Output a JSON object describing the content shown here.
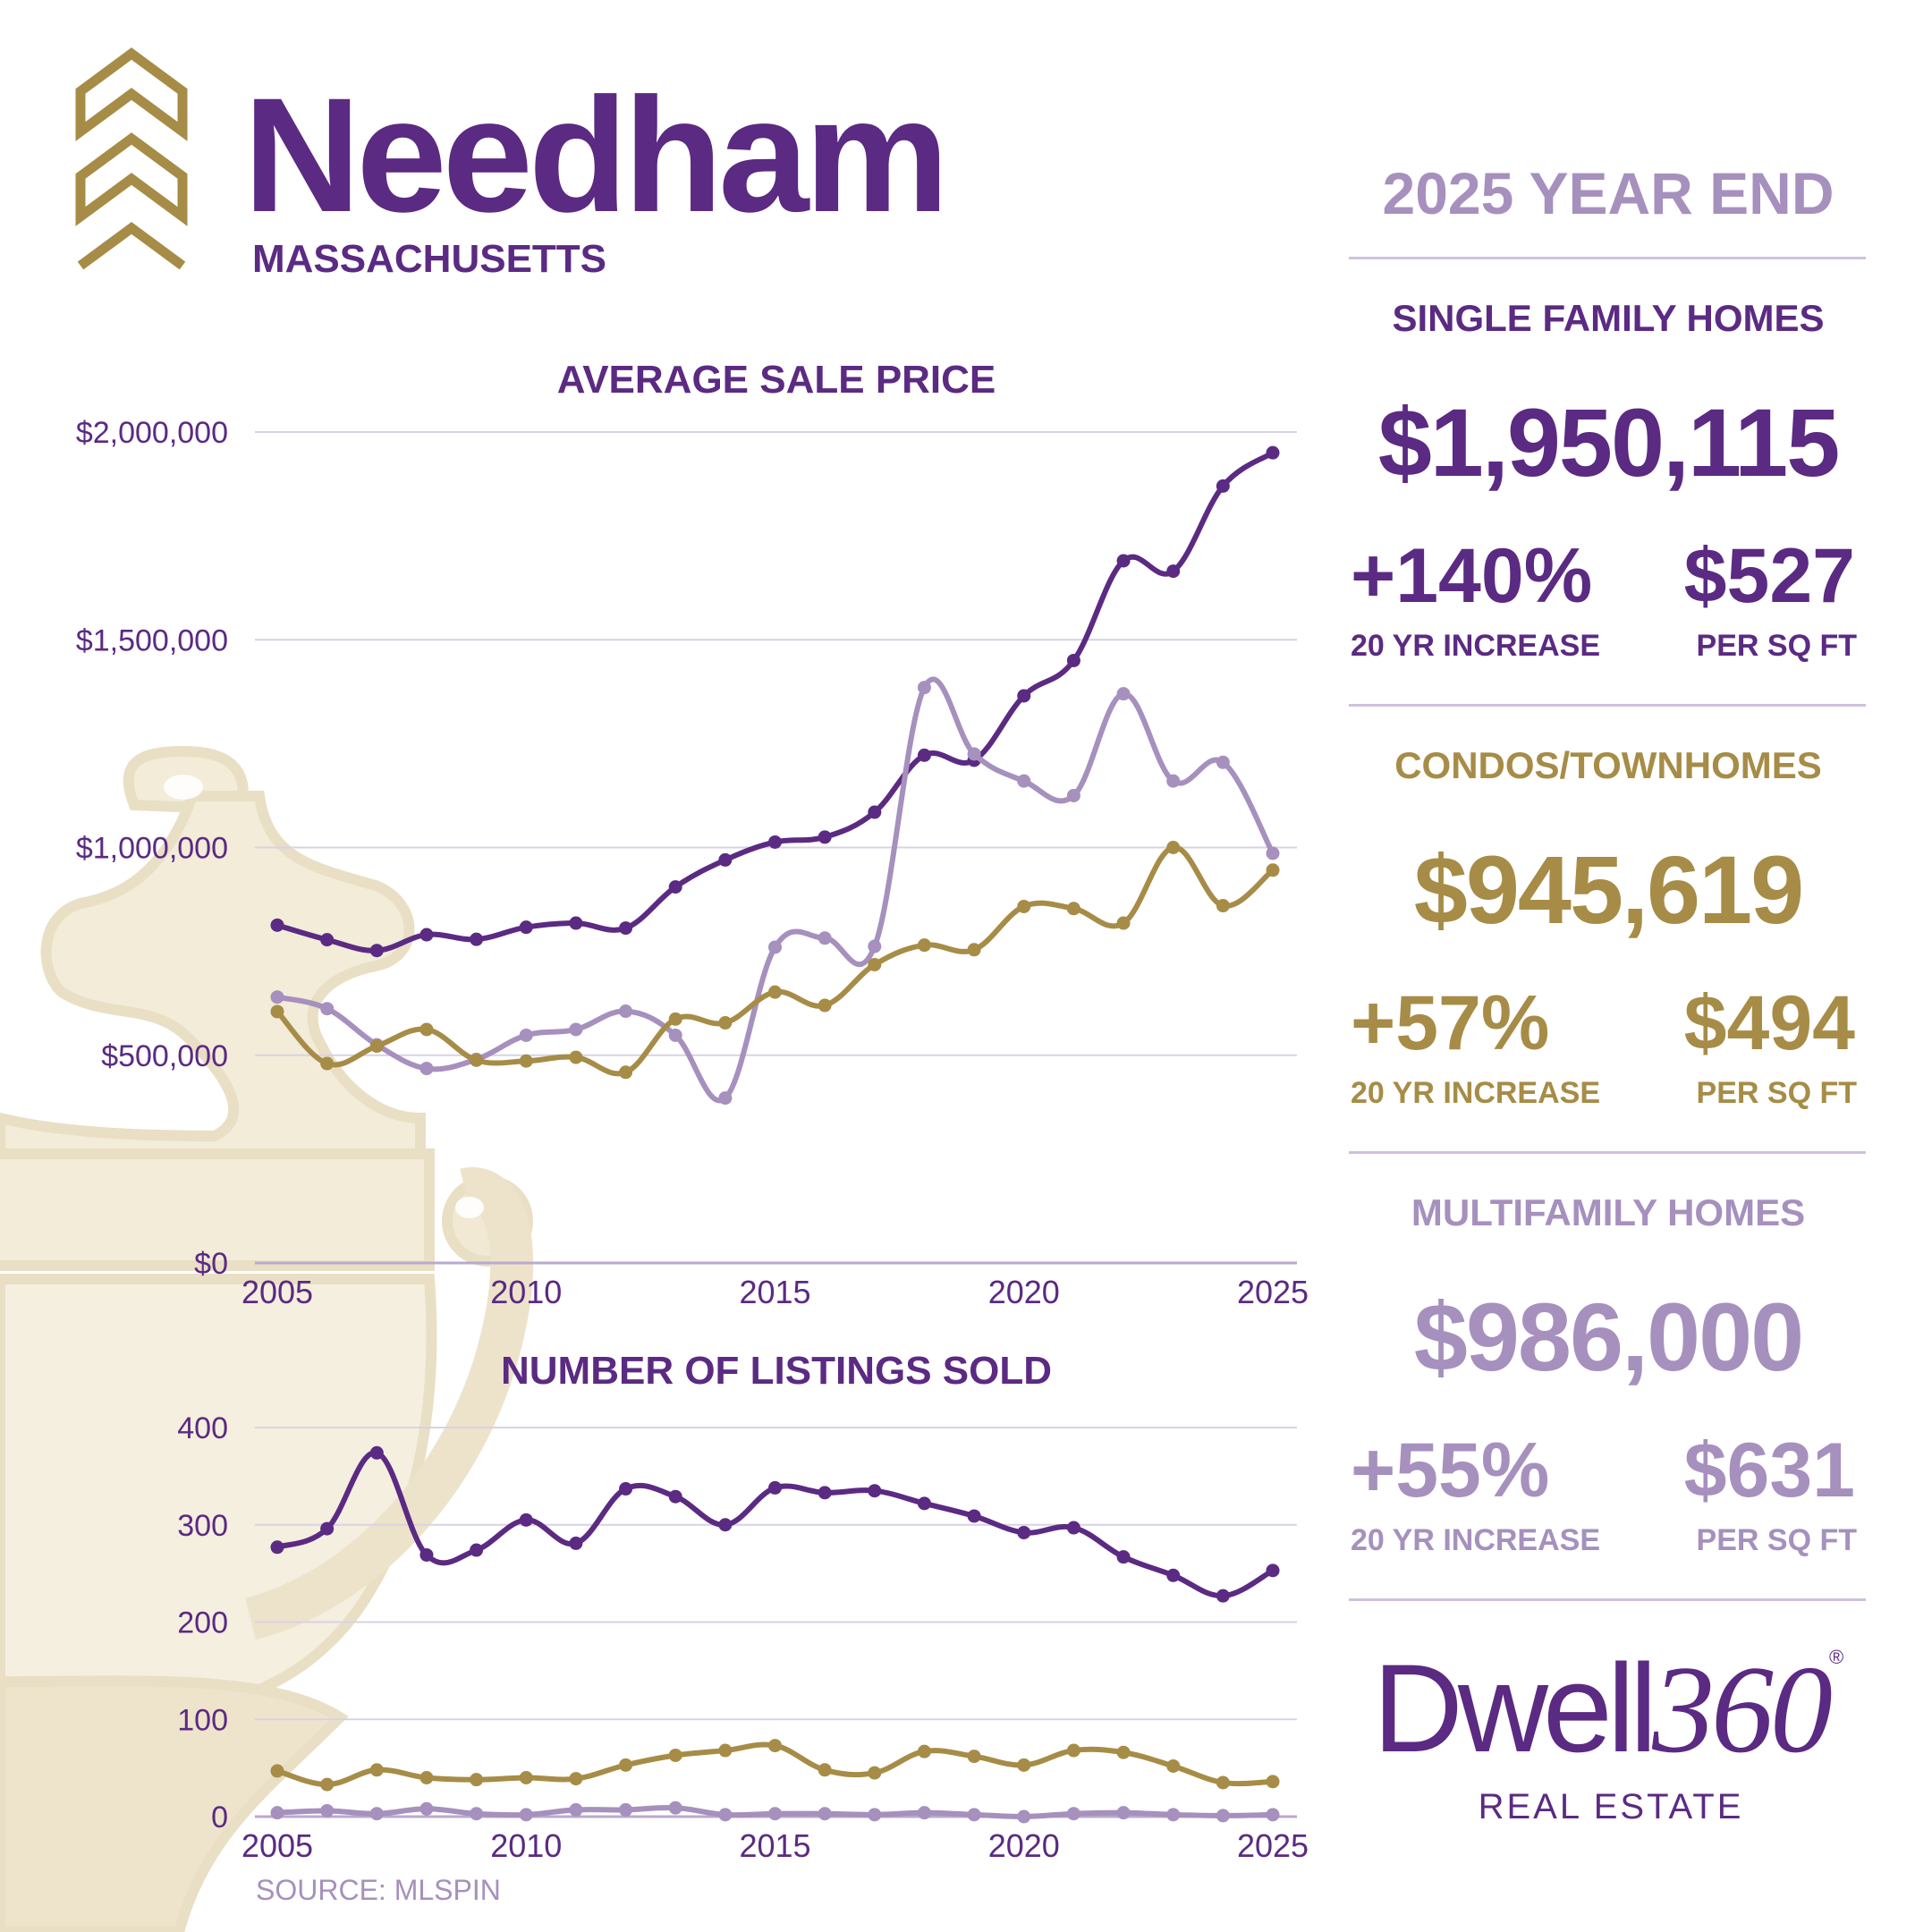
{
  "header": {
    "town": "Needham",
    "state": "MASSACHUSETTS",
    "period": "2025 YEAR END"
  },
  "colors": {
    "purple": "#5b2a82",
    "gold": "#a68c46",
    "lavender": "#a690bd",
    "grid": "#d9d2e3"
  },
  "segments": {
    "single_family": {
      "label": "SINGLE FAMILY HOMES",
      "price": "$1,950,115",
      "increase": "+140%",
      "increase_label": "20 YR INCREASE",
      "ppsf": "$527",
      "ppsf_label": "PER SQ FT"
    },
    "condos": {
      "label": "CONDOS/TOWNHOMES",
      "price": "$945,619",
      "increase": "+57%",
      "increase_label": "20 YR INCREASE",
      "ppsf": "$494",
      "ppsf_label": "PER SQ FT"
    },
    "multifamily": {
      "label": "MULTIFAMILY HOMES",
      "price": "$986,000",
      "increase": "+55%",
      "increase_label": "20 YR INCREASE",
      "ppsf": "$631",
      "ppsf_label": "PER SQ FT"
    }
  },
  "brand": {
    "name_part1": "Dwell",
    "name_part2": "360",
    "registered": "®",
    "tagline": "REAL ESTATE"
  },
  "source": "SOURCE: MLSPIN",
  "chart_data": [
    {
      "type": "line",
      "title": "AVERAGE SALE PRICE",
      "x": [
        2005,
        2006,
        2007,
        2008,
        2009,
        2010,
        2011,
        2012,
        2013,
        2014,
        2015,
        2016,
        2017,
        2018,
        2019,
        2020,
        2021,
        2022,
        2023,
        2024,
        2025
      ],
      "x_ticks": [
        "2005",
        "2010",
        "2015",
        "2020",
        "2025"
      ],
      "y_ticks": [
        "$0",
        "$500,000",
        "$1,000,000",
        "$1,500,000",
        "$2,000,000"
      ],
      "ylim": [
        0,
        2000000
      ],
      "grid": true,
      "series": [
        {
          "key": "single_family",
          "color": "#5b2a82",
          "values": [
            813000,
            778000,
            752000,
            790000,
            779000,
            808000,
            818000,
            806000,
            905000,
            970000,
            1013000,
            1025000,
            1085000,
            1222000,
            1210000,
            1365000,
            1450000,
            1690000,
            1665000,
            1870000,
            1950115
          ]
        },
        {
          "key": "multifamily",
          "color": "#a690bd",
          "values": [
            640000,
            612000,
            525000,
            468000,
            490000,
            548000,
            562000,
            606000,
            548000,
            397000,
            760000,
            782000,
            762000,
            1385000,
            1225000,
            1160000,
            1125000,
            1370000,
            1160000,
            1205000,
            986000
          ]
        },
        {
          "key": "condos",
          "color": "#a68c46",
          "values": [
            605000,
            480000,
            522000,
            562000,
            488000,
            486000,
            495000,
            459000,
            587000,
            578000,
            652000,
            620000,
            718000,
            765000,
            754000,
            858000,
            853000,
            818000,
            1000000,
            860000,
            945619
          ]
        }
      ]
    },
    {
      "type": "line",
      "title": "NUMBER OF LISTINGS SOLD",
      "x": [
        2005,
        2006,
        2007,
        2008,
        2009,
        2010,
        2011,
        2012,
        2013,
        2014,
        2015,
        2016,
        2017,
        2018,
        2019,
        2020,
        2021,
        2022,
        2023,
        2024,
        2025
      ],
      "x_ticks": [
        "2005",
        "2010",
        "2015",
        "2020",
        "2025"
      ],
      "y_ticks": [
        "0",
        "100",
        "200",
        "300",
        "400"
      ],
      "ylim": [
        0,
        400
      ],
      "grid": true,
      "series": [
        {
          "key": "single_family",
          "color": "#5b2a82",
          "values": [
            277,
            296,
            374,
            269,
            274,
            305,
            281,
            337,
            329,
            300,
            338,
            333,
            335,
            322,
            309,
            292,
            297,
            267,
            248,
            227,
            253
          ]
        },
        {
          "key": "condos",
          "color": "#a68c46",
          "values": [
            47,
            33,
            48,
            40,
            38,
            40,
            39,
            53,
            63,
            68,
            73,
            48,
            45,
            67,
            62,
            53,
            68,
            66,
            52,
            35,
            36
          ]
        },
        {
          "key": "multifamily",
          "color": "#a690bd",
          "values": [
            4,
            6,
            3,
            8,
            3,
            2,
            7,
            7,
            9,
            2,
            3,
            3,
            2,
            4,
            2,
            0,
            3,
            4,
            2,
            1,
            2
          ]
        }
      ]
    }
  ]
}
